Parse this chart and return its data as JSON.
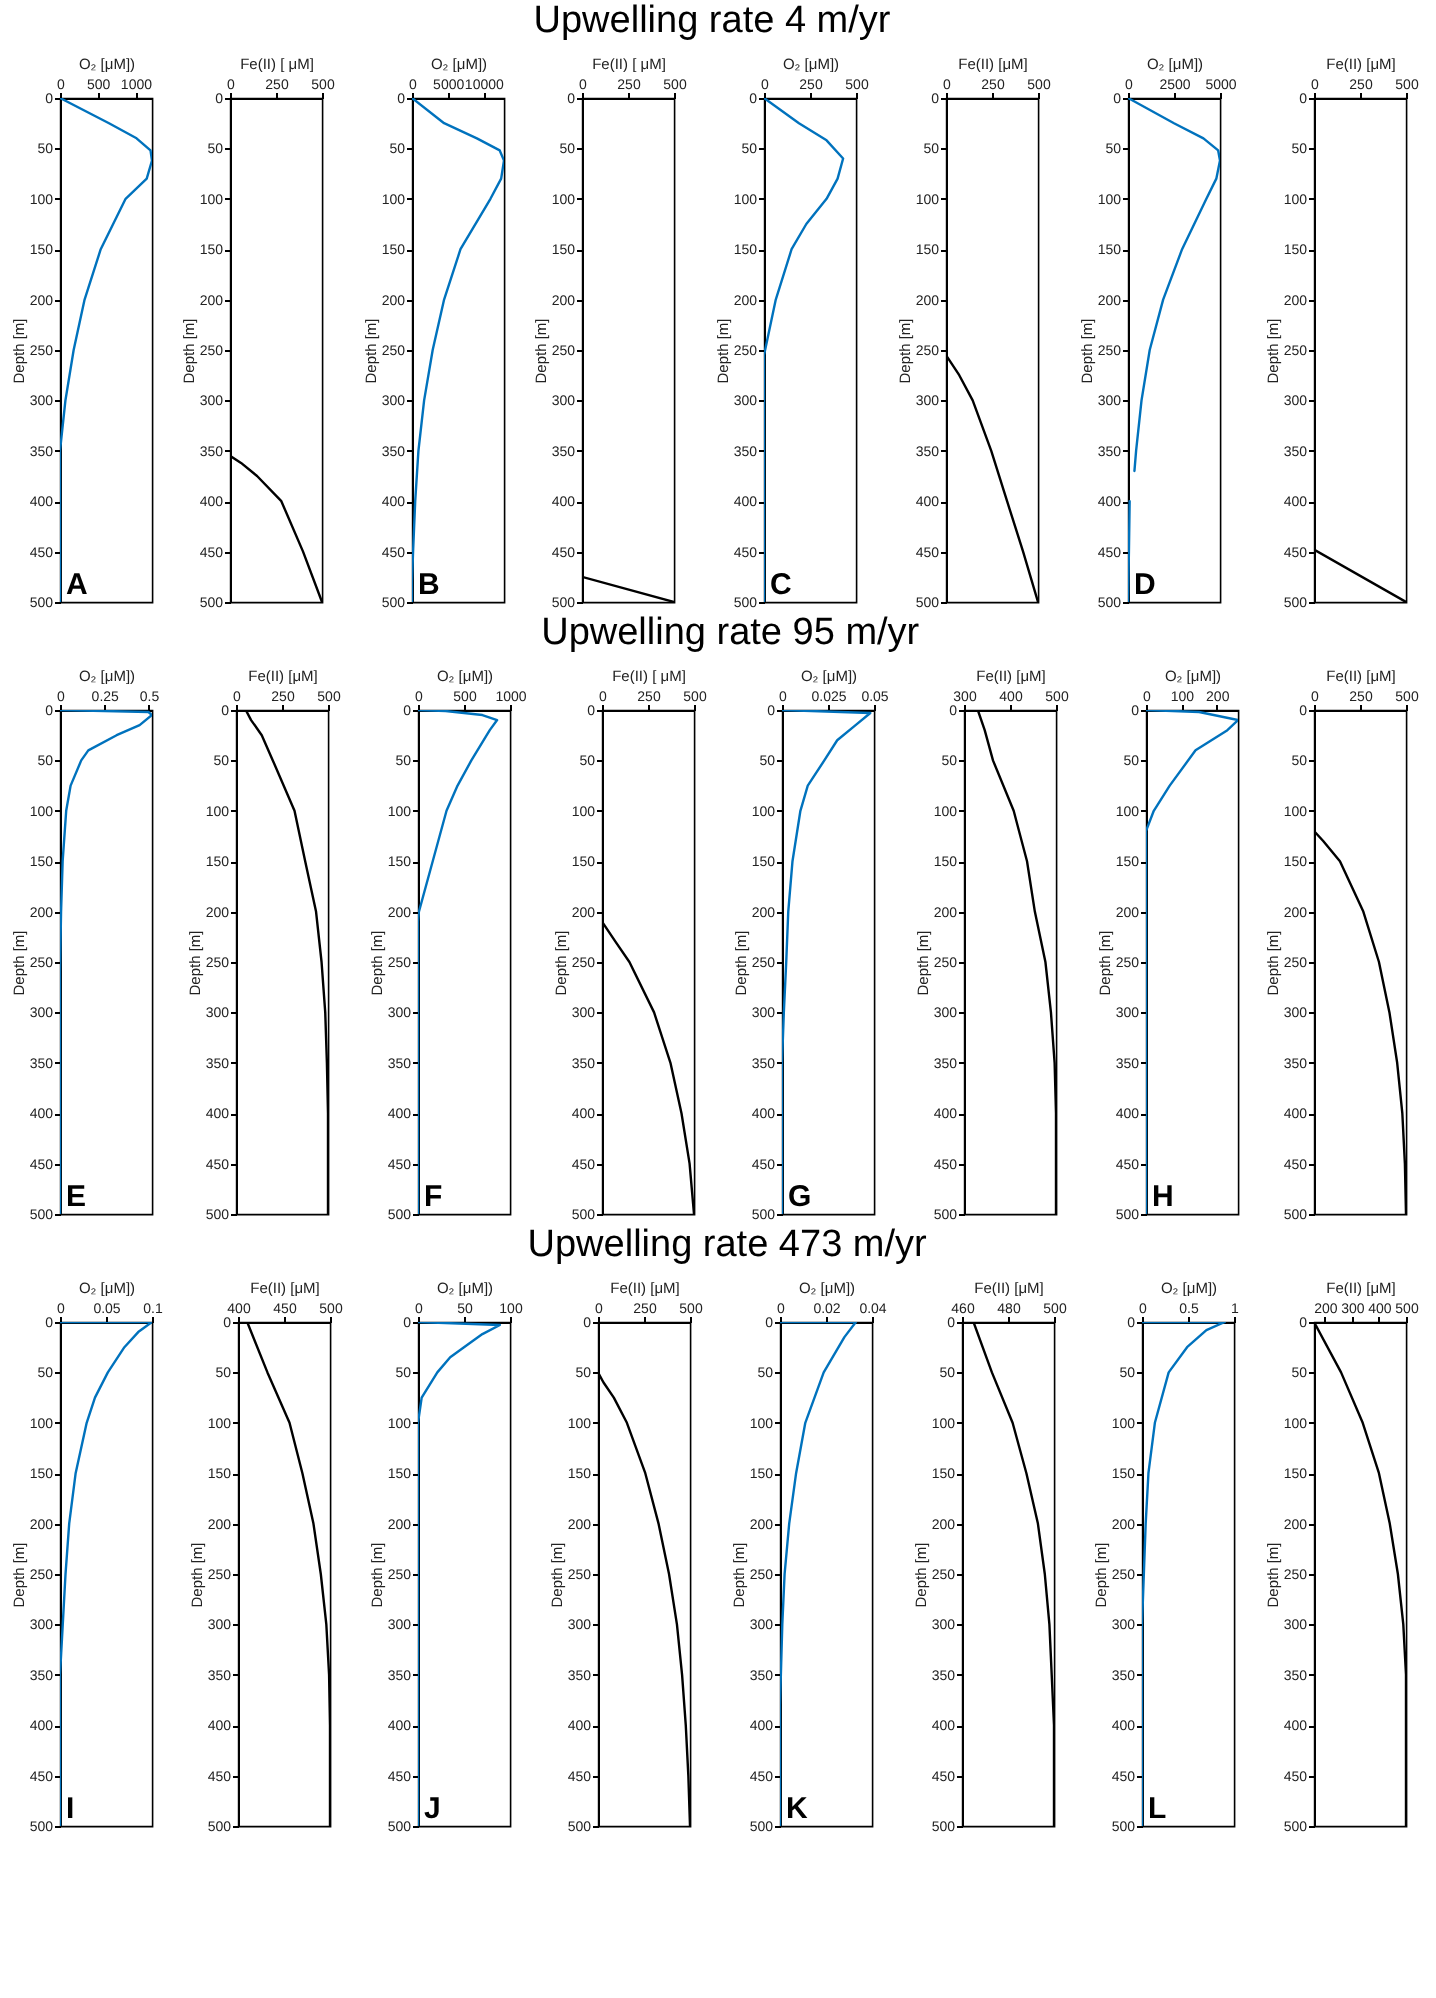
{
  "chart_data": [
    {
      "type": "line",
      "xlabel": "O₂ [μM])",
      "ylabel": "Depth [m]",
      "xlim": [
        0,
        1220
      ],
      "xticks": [
        0,
        500,
        1000
      ],
      "ylim": [
        500,
        0
      ],
      "yticks": [
        0,
        50,
        100,
        150,
        200,
        250,
        300,
        350,
        400,
        450,
        500
      ],
      "annotations": [
        "A"
      ],
      "series": [
        {
          "color": "#0072bd",
          "x": [
            0,
            650,
            1015,
            1200,
            1220,
            1150,
            870,
            540,
            326,
            181,
            72,
            0,
            0
          ],
          "values": [
            0,
            25,
            40,
            52,
            62,
            80,
            100,
            150,
            200,
            250,
            300,
            350,
            500
          ]
        }
      ]
    },
    {
      "type": "line",
      "xlabel": "Fe(II) [ μM]",
      "ylabel": "Depth [m]",
      "xlim": [
        0,
        500
      ],
      "xticks": [
        0,
        250,
        500
      ],
      "ylim": [
        500,
        0
      ],
      "yticks": [
        0,
        50,
        100,
        150,
        200,
        250,
        300,
        350,
        400,
        450,
        500
      ],
      "series": [
        {
          "color": "#000000",
          "x": [
            0,
            0,
            60,
            147,
            279,
            397,
            500
          ],
          "values": [
            0,
            355,
            362,
            375,
            400,
            450,
            500
          ]
        }
      ]
    },
    {
      "type": "line",
      "xlabel": "O₂ [μM])",
      "ylabel": "Depth [m]",
      "xlim": [
        0,
        12900
      ],
      "xticks": [
        0,
        5000,
        10000
      ],
      "ylim": [
        500,
        0
      ],
      "yticks": [
        0,
        50,
        100,
        150,
        200,
        250,
        300,
        350,
        400,
        450,
        500
      ],
      "annotations": [
        "B"
      ],
      "series": [
        {
          "color": "#0072bd",
          "x": [
            0,
            4500,
            9100,
            12300,
            12900,
            12500,
            11000,
            6800,
            4500,
            2900,
            1700,
            900,
            450,
            150,
            0,
            0
          ],
          "values": [
            0,
            25,
            40,
            52,
            62,
            80,
            100,
            150,
            200,
            250,
            300,
            350,
            400,
            450,
            480,
            500
          ]
        }
      ]
    },
    {
      "type": "line",
      "xlabel": "Fe(II) [ μM]",
      "ylabel": "Depth [m]",
      "xlim": [
        0,
        500
      ],
      "xticks": [
        0,
        250,
        500
      ],
      "ylim": [
        500,
        0
      ],
      "yticks": [
        0,
        50,
        100,
        150,
        200,
        250,
        300,
        350,
        400,
        450,
        500
      ],
      "series": [
        {
          "color": "#000000",
          "x": [
            0,
            0,
            500
          ],
          "values": [
            0,
            475,
            500
          ]
        }
      ]
    },
    {
      "type": "line",
      "xlabel": "O₂ [μM])",
      "ylabel": "Depth [m]",
      "xlim": [
        0,
        500
      ],
      "xticks": [
        0,
        250,
        500
      ],
      "ylim": [
        500,
        0
      ],
      "yticks": [
        0,
        50,
        100,
        150,
        200,
        250,
        300,
        350,
        400,
        450,
        500
      ],
      "title": "Upwelling rate 4 m/yr",
      "annotations": [
        "C"
      ],
      "series": [
        {
          "color": "#0072bd",
          "x": [
            0,
            190,
            340,
            430,
            400,
            340,
            230,
            150,
            64,
            6,
            0,
            0
          ],
          "values": [
            0,
            25,
            42,
            60,
            80,
            100,
            125,
            150,
            200,
            250,
            255,
            500
          ]
        }
      ]
    },
    {
      "type": "line",
      "xlabel": "Fe(II) [μM]",
      "ylabel": "Depth [m]",
      "xlim": [
        0,
        500
      ],
      "xticks": [
        0,
        250,
        500
      ],
      "ylim": [
        500,
        0
      ],
      "yticks": [
        0,
        50,
        100,
        150,
        200,
        250,
        300,
        350,
        400,
        450,
        500
      ],
      "series": [
        {
          "color": "#000000",
          "x": [
            0,
            0,
            72,
            145,
            246,
            332,
            419,
            500
          ],
          "values": [
            0,
            255,
            275,
            300,
            350,
            400,
            450,
            500
          ]
        }
      ]
    },
    {
      "type": "line",
      "xlabel": "O₂ [μM])",
      "ylabel": "Depth [m]",
      "xlim": [
        0,
        5000
      ],
      "xticks": [
        0,
        2500,
        5000
      ],
      "ylim": [
        500,
        0
      ],
      "yticks": [
        0,
        50,
        100,
        150,
        200,
        250,
        300,
        350,
        400,
        450,
        500
      ],
      "annotations": [
        "D"
      ],
      "series": [
        {
          "color": "#0072bd",
          "x": [
            0,
            2500,
            4100,
            4900,
            5000,
            4800,
            4260,
            2940,
            1910,
            1180,
            735,
            440,
            350,
            null,
            90,
            50,
            0
          ],
          "values": [
            0,
            25,
            40,
            52,
            62,
            80,
            100,
            150,
            200,
            250,
            300,
            350,
            370,
            null,
            400,
            450,
            500
          ]
        }
      ]
    },
    {
      "type": "line",
      "xlabel": "Fe(II) [μM]",
      "ylabel": "Depth [m]",
      "xlim": [
        0,
        500
      ],
      "xticks": [
        0,
        250,
        500
      ],
      "ylim": [
        500,
        0
      ],
      "yticks": [
        0,
        50,
        100,
        150,
        200,
        250,
        300,
        350,
        400,
        450,
        500
      ],
      "series": [
        {
          "color": "#000000",
          "x": [
            0,
            0,
            500
          ],
          "values": [
            0,
            448,
            500
          ]
        }
      ]
    },
    {
      "type": "line",
      "xlabel": "O₂ [μM])",
      "ylabel": "Depth [m]",
      "xlim": [
        0,
        0.52
      ],
      "xticks": [
        0,
        0.25,
        0.5
      ],
      "ylim": [
        500,
        0
      ],
      "yticks": [
        0,
        50,
        100,
        150,
        200,
        250,
        300,
        350,
        400,
        450,
        500
      ],
      "annotations": [
        "E"
      ],
      "series": [
        {
          "color": "#0072bd",
          "x": [
            0,
            0.5,
            0.52,
            0.45,
            0.32,
            0.16,
            0.12,
            0.06,
            0.035,
            0.015,
            0.006,
            0,
            0
          ],
          "values": [
            0,
            2,
            5,
            15,
            25,
            40,
            50,
            75,
            100,
            150,
            200,
            260,
            500
          ]
        }
      ]
    },
    {
      "type": "line",
      "xlabel": "Fe(II) [μM]",
      "ylabel": "Depth [m]",
      "xlim": [
        0,
        500
      ],
      "xticks": [
        0,
        250,
        500
      ],
      "ylim": [
        500,
        0
      ],
      "yticks": [
        0,
        50,
        100,
        150,
        200,
        250,
        300,
        350,
        400,
        450,
        500
      ],
      "series": [
        {
          "color": "#000000",
          "x": [
            53,
            82,
            140,
            200,
            318,
            376,
            435,
            465,
            485,
            494,
            500,
            500
          ],
          "values": [
            0,
            10,
            25,
            50,
            100,
            150,
            200,
            250,
            300,
            350,
            400,
            500
          ]
        }
      ]
    },
    {
      "type": "line",
      "xlabel": "O₂ [μM])",
      "ylabel": "Depth [m]",
      "xlim": [
        0,
        1000
      ],
      "xticks": [
        0,
        500,
        1000
      ],
      "ylim": [
        500,
        0
      ],
      "yticks": [
        0,
        50,
        100,
        150,
        200,
        250,
        300,
        350,
        400,
        450,
        500
      ],
      "annotations": [
        "F"
      ],
      "series": [
        {
          "color": "#0072bd",
          "x": [
            0,
            300,
            700,
            860,
            780,
            580,
            430,
            310,
            160,
            10,
            0,
            0
          ],
          "values": [
            0,
            1,
            5,
            10,
            20,
            50,
            75,
            100,
            150,
            200,
            210,
            500
          ]
        }
      ]
    },
    {
      "type": "line",
      "xlabel": "Fe(II) [ μM]",
      "ylabel": "Depth [m]",
      "xlim": [
        0,
        500
      ],
      "xticks": [
        0,
        250,
        500
      ],
      "ylim": [
        500,
        0
      ],
      "yticks": [
        0,
        50,
        100,
        150,
        200,
        250,
        300,
        350,
        400,
        450,
        500
      ],
      "series": [
        {
          "color": "#000000",
          "x": [
            0,
            0,
            74,
            149,
            283,
            372,
            432,
            476,
            500
          ],
          "values": [
            0,
            210,
            230,
            250,
            300,
            350,
            400,
            450,
            500
          ]
        }
      ]
    },
    {
      "type": "line",
      "xlabel": "O₂ [μM])",
      "ylabel": "Depth [m]",
      "xlim": [
        0,
        0.05
      ],
      "xticks": [
        0,
        0.025,
        0.05
      ],
      "ylim": [
        500,
        0
      ],
      "yticks": [
        0,
        50,
        100,
        150,
        200,
        250,
        300,
        350,
        400,
        450,
        500
      ],
      "title": "Upwelling rate 95 m/yr",
      "annotations": [
        "G"
      ],
      "series": [
        {
          "color": "#0072bd",
          "x": [
            0,
            0.048,
            0.04,
            0.03,
            0.023,
            0.014,
            0.01,
            0.0057,
            0.0034,
            0.0023,
            0.001,
            0,
            0
          ],
          "values": [
            0,
            3,
            15,
            30,
            50,
            75,
            100,
            150,
            200,
            250,
            300,
            350,
            500
          ]
        }
      ]
    },
    {
      "type": "line",
      "xlabel": "Fe(II) [μM]",
      "ylabel": "Depth [m]",
      "xlim": [
        300,
        500
      ],
      "xticks": [
        300,
        400,
        500
      ],
      "ylim": [
        500,
        0
      ],
      "yticks": [
        0,
        50,
        100,
        150,
        200,
        250,
        300,
        350,
        400,
        450,
        500
      ],
      "series": [
        {
          "color": "#000000",
          "x": [
            330,
            345,
            363,
            408,
            437,
            454,
            477,
            489,
            497,
            500,
            500
          ],
          "values": [
            0,
            20,
            50,
            100,
            150,
            200,
            250,
            300,
            350,
            400,
            500
          ]
        }
      ]
    },
    {
      "type": "line",
      "xlabel": "O₂ [μM])",
      "ylabel": "Depth [m]",
      "xlim": [
        0,
        260
      ],
      "xticks": [
        0,
        100,
        200
      ],
      "ylim": [
        500,
        0
      ],
      "yticks": [
        0,
        50,
        100,
        150,
        200,
        250,
        300,
        350,
        400,
        450,
        500
      ],
      "annotations": [
        "H"
      ],
      "series": [
        {
          "color": "#0072bd",
          "x": [
            0,
            150,
            260,
            230,
            140,
            67,
            22,
            0,
            0
          ],
          "values": [
            0,
            2,
            10,
            20,
            40,
            75,
            100,
            120,
            500
          ]
        }
      ]
    },
    {
      "type": "line",
      "xlabel": "Fe(II) [μM]",
      "ylabel": "Depth [m]",
      "xlim": [
        0,
        500
      ],
      "xticks": [
        0,
        250,
        500
      ],
      "ylim": [
        500,
        0
      ],
      "yticks": [
        0,
        50,
        100,
        150,
        200,
        250,
        300,
        350,
        400,
        450,
        500
      ],
      "series": [
        {
          "color": "#000000",
          "x": [
            0,
            0,
            50,
            141,
            268,
            353,
            410,
            452,
            480,
            494,
            500
          ],
          "values": [
            0,
            120,
            130,
            150,
            200,
            250,
            300,
            350,
            400,
            450,
            500
          ]
        }
      ]
    },
    {
      "type": "line",
      "xlabel": "O₂ [μM])",
      "ylabel": "Depth [m]",
      "xlim": [
        0,
        0.1
      ],
      "xticks": [
        0,
        0.05,
        0.1
      ],
      "ylim": [
        500,
        0
      ],
      "yticks": [
        0,
        50,
        100,
        150,
        200,
        250,
        300,
        350,
        400,
        450,
        500
      ],
      "annotations": [
        "I"
      ],
      "series": [
        {
          "color": "#0072bd",
          "x": [
            0,
            0.1,
            0.085,
            0.07,
            0.052,
            0.038,
            0.029,
            0.017,
            0.01,
            0.006,
            0.003,
            0,
            0
          ],
          "values": [
            0,
            0,
            10,
            25,
            50,
            75,
            100,
            150,
            200,
            250,
            300,
            350,
            500
          ]
        }
      ]
    },
    {
      "type": "line",
      "xlabel": "Fe(II) [μM]",
      "ylabel": "Depth [m]",
      "xlim": [
        400,
        500
      ],
      "xticks": [
        400,
        450,
        500
      ],
      "ylim": [
        500,
        0
      ],
      "yticks": [
        0,
        50,
        100,
        150,
        200,
        250,
        300,
        350,
        400,
        450,
        500
      ],
      "series": [
        {
          "color": "#000000",
          "x": [
            410,
            432,
            456,
            470,
            482,
            490,
            496,
            499,
            500,
            500
          ],
          "values": [
            0,
            50,
            100,
            150,
            200,
            250,
            300,
            350,
            400,
            500
          ]
        }
      ]
    },
    {
      "type": "line",
      "xlabel": "O₂ [μM])",
      "ylabel": "Depth [m]",
      "xlim": [
        0,
        100
      ],
      "xticks": [
        0,
        50,
        100
      ],
      "ylim": [
        500,
        0
      ],
      "yticks": [
        0,
        50,
        100,
        150,
        200,
        250,
        300,
        350,
        400,
        450,
        500
      ],
      "annotations": [
        "J"
      ],
      "series": [
        {
          "color": "#0072bd",
          "x": [
            0,
            89,
            70,
            50,
            35,
            21,
            4,
            0,
            0
          ],
          "values": [
            0,
            3,
            12,
            25,
            35,
            50,
            75,
            100,
            500
          ]
        }
      ]
    },
    {
      "type": "line",
      "xlabel": "Fe(II) [μM]",
      "ylabel": "Depth [m]",
      "xlim": [
        0,
        500
      ],
      "xticks": [
        0,
        250,
        500
      ],
      "ylim": [
        500,
        0
      ],
      "yticks": [
        0,
        50,
        100,
        150,
        200,
        250,
        300,
        350,
        400,
        450,
        500
      ],
      "series": [
        {
          "color": "#000000",
          "x": [
            0,
            0,
            30,
            86,
            157,
            257,
            329,
            386,
            429,
            457,
            477,
            491,
            500
          ],
          "values": [
            0,
            50,
            60,
            75,
            100,
            150,
            200,
            250,
            300,
            350,
            400,
            450,
            500
          ]
        }
      ]
    },
    {
      "type": "line",
      "xlabel": "O₂ [μM])",
      "ylabel": "Depth [m]",
      "xlim": [
        0,
        0.04
      ],
      "xticks": [
        0,
        0.02,
        0.04
      ],
      "ylim": [
        500,
        0
      ],
      "yticks": [
        0,
        50,
        100,
        150,
        200,
        250,
        300,
        350,
        400,
        450,
        500
      ],
      "title": "Upwelling rate 473 m/yr",
      "annotations": [
        "K"
      ],
      "series": [
        {
          "color": "#0072bd",
          "x": [
            0,
            0.033,
            0.028,
            0.019,
            0.011,
            0.007,
            0.004,
            0.002,
            0.001,
            0,
            0
          ],
          "values": [
            0,
            0,
            15,
            50,
            100,
            150,
            200,
            250,
            300,
            380,
            500
          ]
        }
      ]
    },
    {
      "type": "line",
      "xlabel": "Fe(II) [μM]",
      "ylabel": "Depth [m]",
      "xlim": [
        460,
        500
      ],
      "xticks": [
        460,
        480,
        500
      ],
      "ylim": [
        500,
        0
      ],
      "yticks": [
        0,
        50,
        100,
        150,
        200,
        250,
        300,
        350,
        400,
        450,
        500
      ],
      "series": [
        {
          "color": "#000000",
          "x": [
            465,
            473,
            482,
            488,
            493,
            496,
            498,
            499,
            500,
            500
          ],
          "values": [
            0,
            50,
            100,
            150,
            200,
            250,
            300,
            350,
            400,
            500
          ]
        }
      ]
    },
    {
      "type": "line",
      "xlabel": "O₂ [μM])",
      "ylabel": "Depth [m]",
      "xlim": [
        0,
        1
      ],
      "xticks": [
        0,
        0.5,
        1
      ],
      "ylim": [
        500,
        0
      ],
      "yticks": [
        0,
        50,
        100,
        150,
        200,
        250,
        300,
        350,
        400,
        450,
        500
      ],
      "annotations": [
        "L"
      ],
      "series": [
        {
          "color": "#0072bd",
          "x": [
            0,
            0.9,
            0.7,
            0.49,
            0.29,
            0.14,
            0.07,
            0.04,
            0.02,
            0,
            0
          ],
          "values": [
            0,
            0,
            8,
            25,
            50,
            100,
            150,
            200,
            250,
            300,
            500
          ]
        }
      ]
    },
    {
      "type": "line",
      "xlabel": "Fe(II) [μM]",
      "ylabel": "Depth [m]",
      "xlim": [
        160,
        500
      ],
      "xticks": [
        200,
        300,
        400,
        500
      ],
      "ylim": [
        500,
        0
      ],
      "yticks": [
        0,
        50,
        100,
        150,
        200,
        250,
        300,
        350,
        400,
        450,
        500
      ],
      "series": [
        {
          "color": "#000000",
          "x": [
            160,
            260,
            340,
            400,
            440,
            470,
            490,
            500,
            500
          ],
          "values": [
            0,
            50,
            100,
            150,
            200,
            250,
            300,
            350,
            500
          ]
        }
      ]
    }
  ]
}
